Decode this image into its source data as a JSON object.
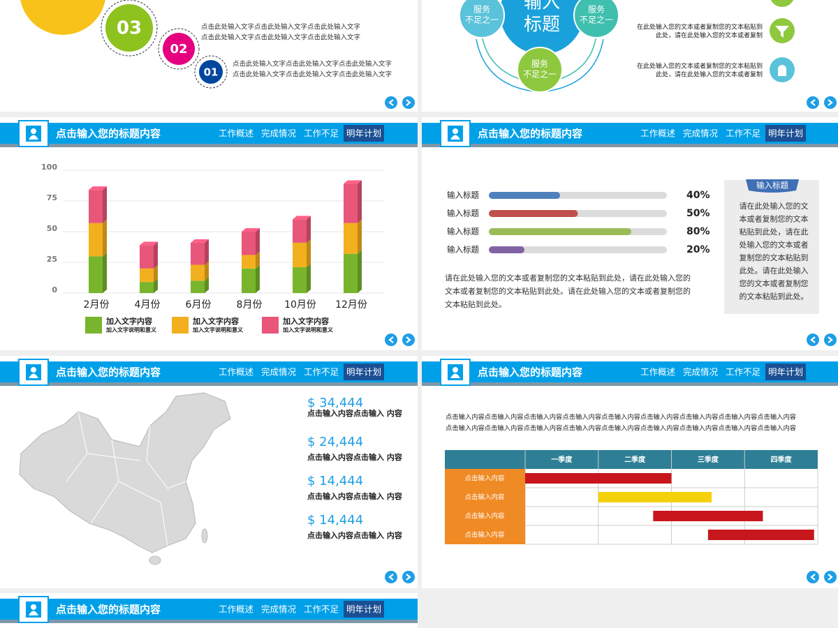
{
  "header": {
    "title": "点击输入您的标题内容",
    "nav": [
      "工作概述",
      "完成情况",
      "工作不足",
      "明年计划"
    ]
  },
  "steps_slide": {
    "steps": [
      {
        "number": "03",
        "lines": [
          "点击此处输入文字点击此处输入文字点击此处输入文字",
          "点击此处输入文字点击此处输入文字点击此处输入文字"
        ]
      },
      {
        "number": "02"
      },
      {
        "number": "01",
        "lines": [
          "点击此处输入文字点击此处输入文字点击此处输入文字",
          "点击此处输入文字点击此处输入文字点击此处输入文字"
        ]
      }
    ]
  },
  "service_slide": {
    "title_lines": [
      "输入",
      "标题"
    ],
    "circles": [
      [
        "服务",
        "不足之一"
      ],
      [
        "服务",
        "不足之一"
      ],
      [
        "服务",
        "不足之一"
      ]
    ],
    "notes": [
      [
        "在此处输入您的文本或者复制您的文本粘贴到",
        "此处，请在此处输入您的文本或者复制"
      ],
      [
        "在此处输入您的文本或者复制您的文本粘贴到",
        "此处，请在此处输入您的文本或者复制"
      ]
    ]
  },
  "chart_data": [
    {
      "type": "bar",
      "stacked": true,
      "categories": [
        "2月份",
        "4月份",
        "6月份",
        "8月份",
        "10月份",
        "12月份"
      ],
      "series": [
        {
          "name": "加入文字内容",
          "description": "加入文字说明和意义",
          "color": "#79b52c",
          "values": [
            30,
            9,
            10,
            20,
            21,
            32
          ]
        },
        {
          "name": "加入文字内容",
          "description": "加入文字说明和意义",
          "color": "#f3b01e",
          "values": [
            27,
            11,
            13,
            11,
            20,
            25
          ]
        },
        {
          "name": "加入文字内容",
          "description": "加入文字说明和意义",
          "color": "#e8567a",
          "values": [
            27,
            19,
            18,
            19,
            19,
            32
          ]
        }
      ],
      "ylim": [
        0,
        100
      ],
      "yticks": [
        0,
        25,
        50,
        75,
        100
      ],
      "grid": true
    },
    {
      "type": "progress",
      "categories": [
        "输入标题",
        "输入标题",
        "输入标题",
        "输入标题"
      ],
      "values": [
        40,
        50,
        80,
        20
      ],
      "value_labels": [
        "40%",
        "50%",
        "80%",
        "20%"
      ],
      "colors": [
        "#4f81bd",
        "#c0504d",
        "#9bbb59",
        "#8064a2"
      ],
      "xlim": [
        0,
        100
      ]
    },
    {
      "type": "gantt",
      "columns": [
        "一季度",
        "二季度",
        "三季度",
        "四季度"
      ],
      "categories": [
        "点击输入内容",
        "点击输入内容",
        "点击输入内容",
        "点击输入内容"
      ],
      "starts": [
        0,
        1,
        1.75,
        2.5
      ],
      "ends": [
        2,
        2.55,
        3.25,
        3.95
      ],
      "colors": [
        "#c8161d",
        "#f5d10c",
        "#c8161d",
        "#c8161d"
      ],
      "xlim": [
        0,
        4
      ]
    }
  ],
  "progress_note": [
    "请在此处输入您的文本或者复制您的文本粘贴到此处，请在此处输入您的",
    "文本或者复制您的文本粘贴到此处。请在此处输入您的文本或者复制您的",
    "文本粘贴到此处。"
  ],
  "side_box": {
    "title": "输入标题",
    "lines": [
      "请在此处输入您的文",
      "本或者复制您的文本",
      "粘贴到此处，请在此",
      "处输入您的文本或者",
      "复制您的文本粘贴到",
      "此处。请在此处输入",
      "您的文本或者复制您",
      "的文本粘贴到此处。"
    ]
  },
  "map_slide": {
    "stats": [
      {
        "value": "$ 34,444",
        "label": "点击输入内容点击输入 内容"
      },
      {
        "value": "$ 24,444",
        "label": "点击输入内容点击输入 内容"
      },
      {
        "value": "$ 14,444",
        "label": "点击输入内容点击输入 内容"
      },
      {
        "value": "$ 14,444",
        "label": "点击输入内容点击输入 内容"
      }
    ]
  },
  "gantt_note": [
    "点击输入内容点击输入内容点击输入内容点击输入内容点击输入内容点击输入内容点击输入内容点击输入内容点击输入内容",
    "点击输入内容点击输入内容点击输入内容点击输入内容点击输入内容点击输入内容点击输入内容点击输入内容点击输入内容"
  ]
}
